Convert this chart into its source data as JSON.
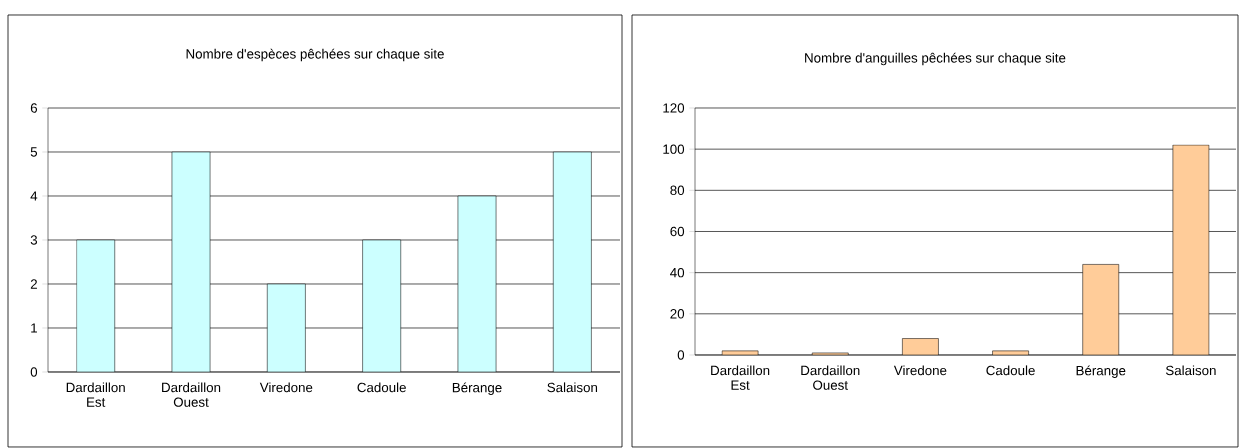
{
  "chart_data": [
    {
      "type": "bar",
      "title": "Nombre d'espèces pêchées sur chaque site",
      "categories": [
        "Dardaillon Est",
        "Dardaillon Ouest",
        "Viredone",
        "Cadoule",
        "Bérange",
        "Salaison"
      ],
      "values": [
        3,
        5,
        2,
        3,
        4,
        5
      ],
      "color": "#ccffff",
      "ylim": [
        0,
        6
      ],
      "yticks": [
        0,
        1,
        2,
        3,
        4,
        5,
        6
      ],
      "grid": "y"
    },
    {
      "type": "bar",
      "title": "Nombre d'anguilles pêchées sur chaque site",
      "categories": [
        "Dardaillon Est",
        "Dardaillon Ouest",
        "Viredone",
        "Cadoule",
        "Bérange",
        "Salaison"
      ],
      "values": [
        2,
        1,
        8,
        2,
        44,
        102
      ],
      "color": "#ffcc99",
      "ylim": [
        0,
        120
      ],
      "yticks": [
        0,
        20,
        40,
        60,
        80,
        100,
        120
      ],
      "grid": "y"
    }
  ]
}
